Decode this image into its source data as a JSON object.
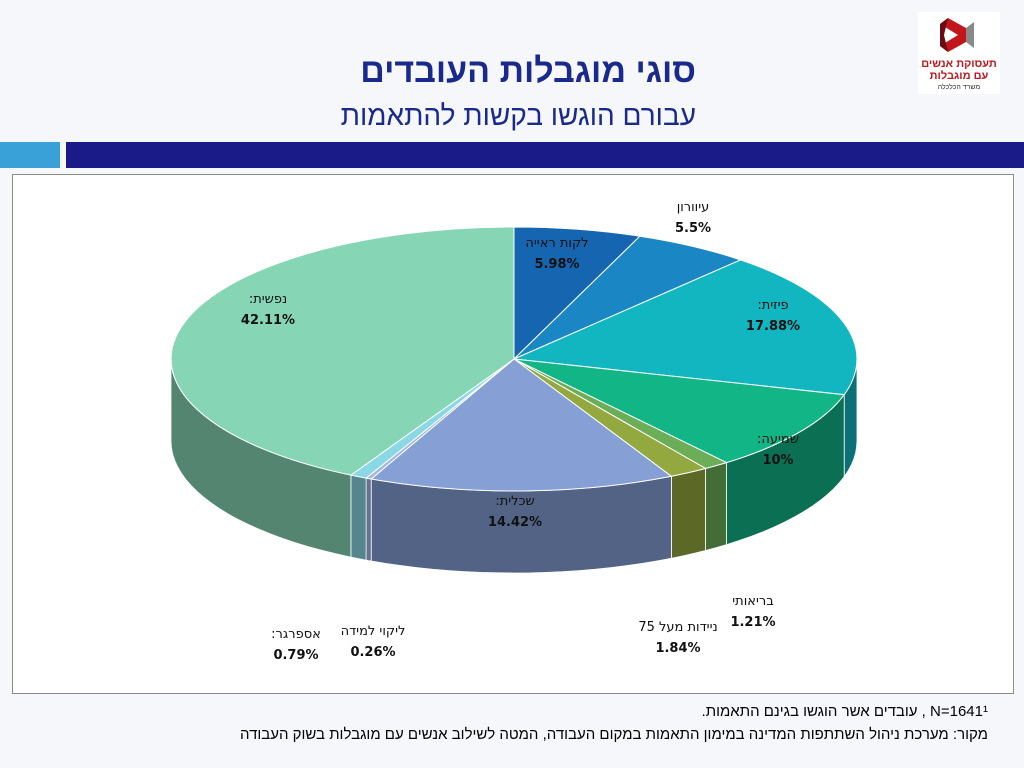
{
  "header": {
    "title": "סוגי מוגבלות העובדים",
    "subtitle": "עבורם הוגשו בקשות להתאמות"
  },
  "logo": {
    "line1": "תעסוקת אנשים",
    "line2": "עם מוגבלות",
    "line3": "משרד הכלכלה"
  },
  "colors": {
    "accent_dark": "#1a1a88",
    "accent_light": "#3aa0d8",
    "title": "#1a2a8c",
    "logo_red": "#c0161c"
  },
  "chart_data": {
    "type": "pie",
    "style": "3d-exploded-perspective",
    "slices": [
      {
        "label": "לקות ראייה",
        "value_label": "5.98%",
        "value": 5.98,
        "color": "#1565b0"
      },
      {
        "label": "עיוורון",
        "value_label": "5.5%",
        "value": 5.5,
        "color": "#1a86c4"
      },
      {
        "label": "פיזית:",
        "value_label": "17.88%",
        "value": 17.88,
        "color": "#12b6c0"
      },
      {
        "label": "שמיעה:",
        "value_label": "10%",
        "value": 10,
        "color": "#12b586"
      },
      {
        "label": "בריאותי",
        "value_label": "1.21%",
        "value": 1.21,
        "color": "#6cae58"
      },
      {
        "label": "ניידות מעל 75",
        "value_label": "1.84%",
        "value": 1.84,
        "color": "#93a83e"
      },
      {
        "label": "שכלית:",
        "value_label": "14.42%",
        "value": 14.42,
        "color": "#86a0d6"
      },
      {
        "label": "ליקוי למידה",
        "value_label": "0.26%",
        "value": 0.26,
        "color": "#a4b8e8"
      },
      {
        "label": "אספרגר:",
        "value_label": "0.79%",
        "value": 0.79,
        "color": "#8ad8e4"
      },
      {
        "label": "נפשית:",
        "value_label": "42.11%",
        "value": 42.11,
        "color": "#86d6b6"
      }
    ]
  },
  "footnote": {
    "note": "N=1641¹ , עובדים אשר הוגשו בגינם התאמות.",
    "source": "מקור: מערכת ניהול השתתפות המדינה במימון התאמות במקום העבודה, המטה לשילוב אנשים עם מוגבלות בשוק העבודה"
  }
}
